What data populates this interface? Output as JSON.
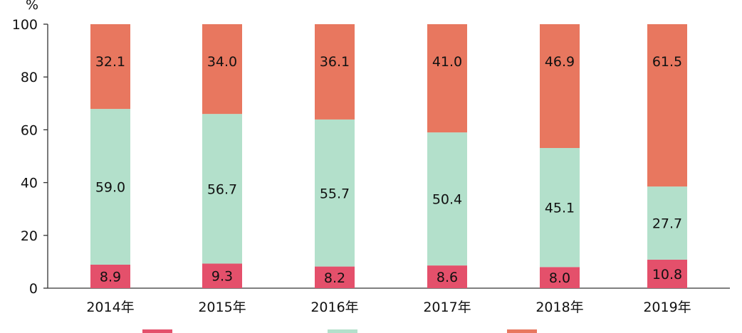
{
  "chart_data": {
    "type": "bar",
    "stacked": true,
    "ylabel": "%",
    "ylim": [
      0,
      100
    ],
    "yticks": [
      0,
      20,
      40,
      60,
      80,
      100
    ],
    "categories": [
      "2014年",
      "2015年",
      "2016年",
      "2017年",
      "2018年",
      "2019年"
    ],
    "series": [
      {
        "values": [
          8.9,
          9.3,
          8.2,
          8.6,
          8.0,
          10.8
        ],
        "color": "#e4506b"
      },
      {
        "values": [
          59.0,
          56.7,
          55.7,
          50.4,
          45.1,
          27.7
        ],
        "color": "#b3e0cb"
      },
      {
        "values": [
          32.1,
          34.0,
          36.1,
          41.0,
          46.9,
          61.5
        ],
        "color": "#e8775f"
      }
    ],
    "grid": false,
    "legend_position": "bottom"
  }
}
